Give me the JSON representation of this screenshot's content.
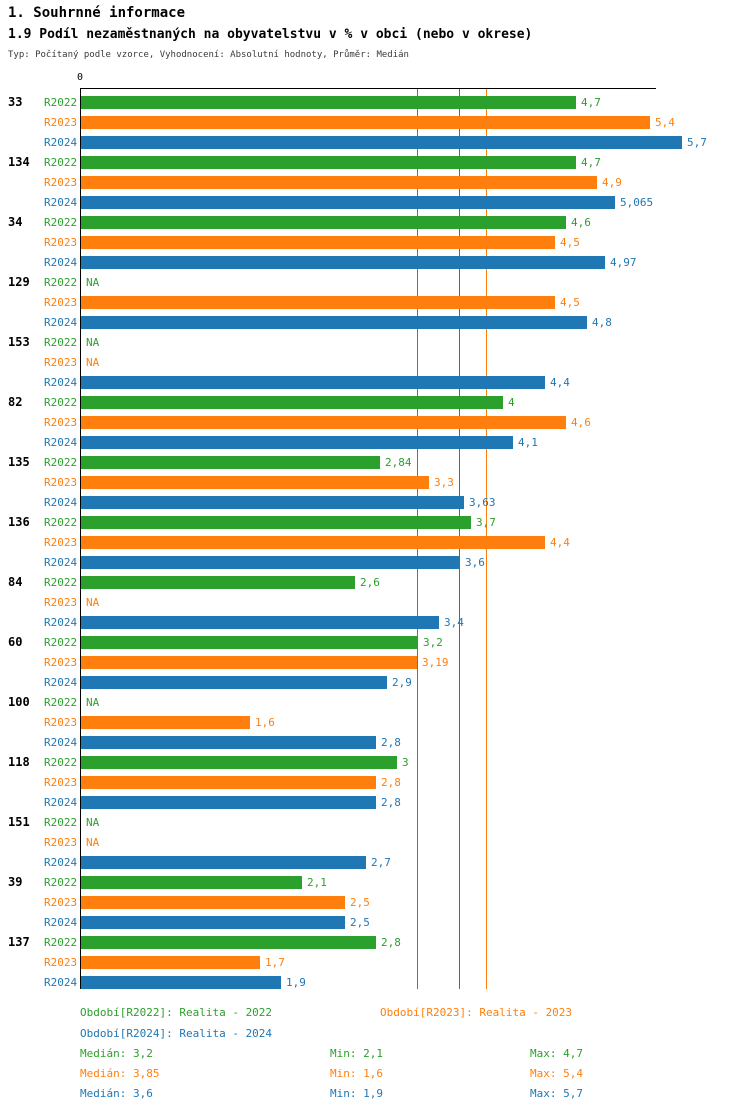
{
  "header": {
    "title": "1. Souhrnné informace",
    "subtitle": "1.9 Podíl nezaměstnaných na obyvatelstvu v % v obci (nebo v okrese)",
    "meta": "Typ: Počítaný podle vzorce, Vyhodnocení: Absolutní hodnoty, Průměr: Medián"
  },
  "chart_data": {
    "type": "bar",
    "orientation": "horizontal",
    "x_axis": {
      "zero_label": "0",
      "min": 0,
      "max_value_shown": 5.7,
      "grid": false
    },
    "series": [
      {
        "name": "R2022",
        "color": "#2CA02C",
        "median": 3.2
      },
      {
        "name": "R2023",
        "color": "#FF7F0E",
        "median": 3.85
      },
      {
        "name": "R2024",
        "color": "#1F77B4",
        "median": 3.6
      }
    ],
    "groups": [
      {
        "id": "33",
        "values": [
          {
            "series": "R2022",
            "label": "4,7",
            "value": 4.7
          },
          {
            "series": "R2023",
            "label": "5,4",
            "value": 5.4
          },
          {
            "series": "R2024",
            "label": "5,7",
            "value": 5.7
          }
        ]
      },
      {
        "id": "134",
        "values": [
          {
            "series": "R2022",
            "label": "4,7",
            "value": 4.7
          },
          {
            "series": "R2023",
            "label": "4,9",
            "value": 4.9
          },
          {
            "series": "R2024",
            "label": "5,065",
            "value": 5.065
          }
        ]
      },
      {
        "id": "34",
        "values": [
          {
            "series": "R2022",
            "label": "4,6",
            "value": 4.6
          },
          {
            "series": "R2023",
            "label": "4,5",
            "value": 4.5
          },
          {
            "series": "R2024",
            "label": "4,97",
            "value": 4.97
          }
        ]
      },
      {
        "id": "129",
        "values": [
          {
            "series": "R2022",
            "label": "NA",
            "value": null
          },
          {
            "series": "R2023",
            "label": "4,5",
            "value": 4.5
          },
          {
            "series": "R2024",
            "label": "4,8",
            "value": 4.8
          }
        ]
      },
      {
        "id": "153",
        "values": [
          {
            "series": "R2022",
            "label": "NA",
            "value": null
          },
          {
            "series": "R2023",
            "label": "NA",
            "value": null
          },
          {
            "series": "R2024",
            "label": "4,4",
            "value": 4.4
          }
        ]
      },
      {
        "id": "82",
        "values": [
          {
            "series": "R2022",
            "label": "4",
            "value": 4
          },
          {
            "series": "R2023",
            "label": "4,6",
            "value": 4.6
          },
          {
            "series": "R2024",
            "label": "4,1",
            "value": 4.1
          }
        ]
      },
      {
        "id": "135",
        "values": [
          {
            "series": "R2022",
            "label": "2,84",
            "value": 2.84
          },
          {
            "series": "R2023",
            "label": "3,3",
            "value": 3.3
          },
          {
            "series": "R2024",
            "label": "3,63",
            "value": 3.63
          }
        ]
      },
      {
        "id": "136",
        "values": [
          {
            "series": "R2022",
            "label": "3,7",
            "value": 3.7
          },
          {
            "series": "R2023",
            "label": "4,4",
            "value": 4.4
          },
          {
            "series": "R2024",
            "label": "3,6",
            "value": 3.6
          }
        ]
      },
      {
        "id": "84",
        "values": [
          {
            "series": "R2022",
            "label": "2,6",
            "value": 2.6
          },
          {
            "series": "R2023",
            "label": "NA",
            "value": null
          },
          {
            "series": "R2024",
            "label": "3,4",
            "value": 3.4
          }
        ]
      },
      {
        "id": "60",
        "values": [
          {
            "series": "R2022",
            "label": "3,2",
            "value": 3.2
          },
          {
            "series": "R2023",
            "label": "3,19",
            "value": 3.19
          },
          {
            "series": "R2024",
            "label": "2,9",
            "value": 2.9
          }
        ]
      },
      {
        "id": "100",
        "values": [
          {
            "series": "R2022",
            "label": "NA",
            "value": null
          },
          {
            "series": "R2023",
            "label": "1,6",
            "value": 1.6
          },
          {
            "series": "R2024",
            "label": "2,8",
            "value": 2.8
          }
        ]
      },
      {
        "id": "118",
        "values": [
          {
            "series": "R2022",
            "label": "3",
            "value": 3
          },
          {
            "series": "R2023",
            "label": "2,8",
            "value": 2.8
          },
          {
            "series": "R2024",
            "label": "2,8",
            "value": 2.8
          }
        ]
      },
      {
        "id": "151",
        "values": [
          {
            "series": "R2022",
            "label": "NA",
            "value": null
          },
          {
            "series": "R2023",
            "label": "NA",
            "value": null
          },
          {
            "series": "R2024",
            "label": "2,7",
            "value": 2.7
          }
        ]
      },
      {
        "id": "39",
        "values": [
          {
            "series": "R2022",
            "label": "2,1",
            "value": 2.1
          },
          {
            "series": "R2023",
            "label": "2,5",
            "value": 2.5
          },
          {
            "series": "R2024",
            "label": "2,5",
            "value": 2.5
          }
        ]
      },
      {
        "id": "137",
        "values": [
          {
            "series": "R2022",
            "label": "2,8",
            "value": 2.8
          },
          {
            "series": "R2023",
            "label": "1,7",
            "value": 1.7
          },
          {
            "series": "R2024",
            "label": "1,9",
            "value": 1.9
          }
        ]
      }
    ]
  },
  "legend": {
    "items": [
      {
        "text": "Období[R2022]: Realita - 2022",
        "series": "R2022",
        "row": 0,
        "col": 0
      },
      {
        "text": "Období[R2023]: Realita - 2023",
        "series": "R2023",
        "row": 0,
        "col": 1
      },
      {
        "text": "Období[R2024]: Realita - 2024",
        "series": "R2024",
        "row": 1,
        "col": 0
      }
    ]
  },
  "stats": {
    "rows": [
      {
        "series": "R2022",
        "median": "Medián: 3,2",
        "min": "Min: 2,1",
        "max": "Max: 4,7"
      },
      {
        "series": "R2023",
        "median": "Medián: 3,85",
        "min": "Min: 1,6",
        "max": "Max: 5,4"
      },
      {
        "series": "R2024",
        "median": "Medián: 3,6",
        "min": "Min: 1,9",
        "max": "Max: 5,7"
      }
    ]
  }
}
